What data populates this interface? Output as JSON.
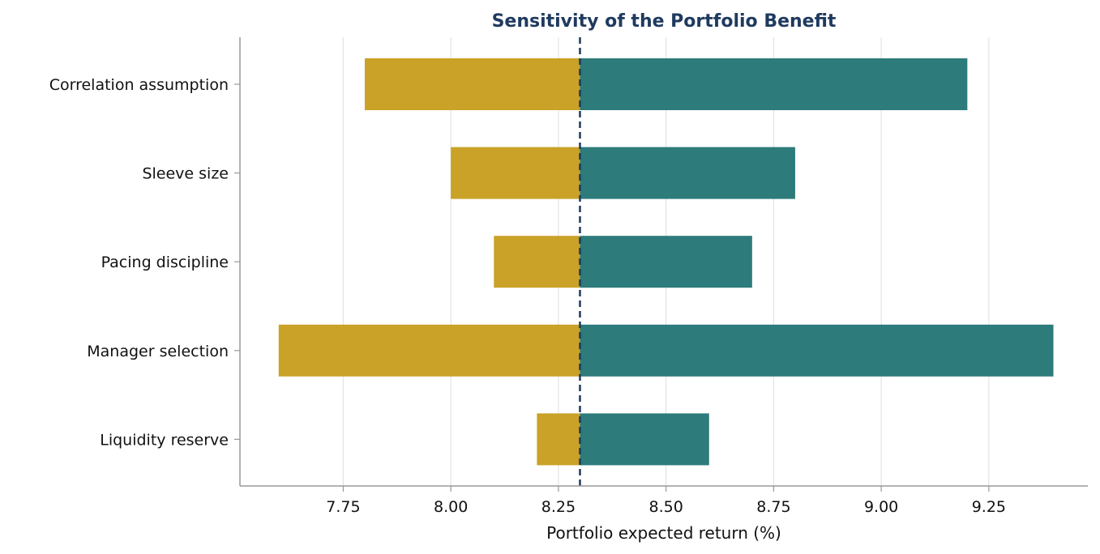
{
  "chart_data": {
    "type": "bar",
    "orientation": "horizontal",
    "chart_style": "tornado",
    "title": "Sensitivity of the Portfolio Benefit",
    "xlabel": "Portfolio expected return (%)",
    "ylabel": "",
    "xlim": [
      7.51,
      9.48
    ],
    "xticks": [
      "7.75",
      "8.00",
      "8.25",
      "8.50",
      "8.75",
      "9.00",
      "9.25"
    ],
    "baseline": 8.3,
    "categories": [
      "Correlation assumption",
      "Sleeve size",
      "Pacing discipline",
      "Manager selection",
      "Liquidity reserve"
    ],
    "series": [
      {
        "values": [
          7.8,
          8.0,
          8.1,
          7.6,
          8.2
        ]
      },
      {
        "values": [
          9.2,
          8.8,
          8.7,
          9.4,
          8.6
        ]
      }
    ],
    "grid": "vertical",
    "legend": "none"
  },
  "colors": {
    "low": "#c9a227",
    "high": "#2d7b7b",
    "baseline": "#1f3a5f",
    "title": "#1f3a5f",
    "grid": "#e3e3e3",
    "axis": "#999999"
  }
}
